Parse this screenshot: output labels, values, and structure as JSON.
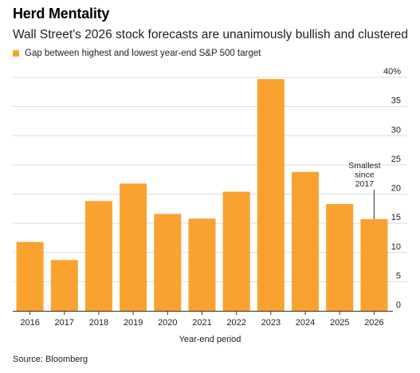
{
  "header": {
    "title": "Herd Mentality",
    "subtitle": "Wall Street's 2026 stock forecasts are unanimously bullish and clustered"
  },
  "footer": {
    "source": "Source: Bloomberg"
  },
  "colors": {
    "bar": "#F9A230",
    "grid": "#DCDCDC",
    "axis": "#333333",
    "text": "#222222"
  },
  "chart_data": {
    "type": "bar",
    "categories": [
      "2016",
      "2017",
      "2018",
      "2019",
      "2020",
      "2021",
      "2022",
      "2023",
      "2024",
      "2025",
      "2026"
    ],
    "series": [
      {
        "name": "Gap between highest and lowest year-end S&P 500 target",
        "values": [
          11.8,
          8.7,
          18.8,
          21.8,
          16.6,
          15.8,
          20.4,
          39.7,
          23.8,
          18.3,
          15.7
        ]
      }
    ],
    "xlabel": "Year-end period",
    "ylabel": "",
    "ylim": [
      0,
      40
    ],
    "yticks": [
      {
        "value": 40,
        "label": "40%"
      },
      {
        "value": 35,
        "label": "35"
      },
      {
        "value": 30,
        "label": "30"
      },
      {
        "value": 25,
        "label": "25"
      },
      {
        "value": 20,
        "label": "20"
      },
      {
        "value": 15,
        "label": "15"
      },
      {
        "value": 10,
        "label": "10"
      },
      {
        "value": 5,
        "label": "5"
      },
      {
        "value": 0,
        "label": "0"
      }
    ],
    "grid": true,
    "legend_position": "top-left",
    "y_axis_side": "right",
    "annotations": [
      {
        "category": "2026",
        "lines": [
          "Smallest",
          "since",
          "2017"
        ]
      }
    ]
  }
}
